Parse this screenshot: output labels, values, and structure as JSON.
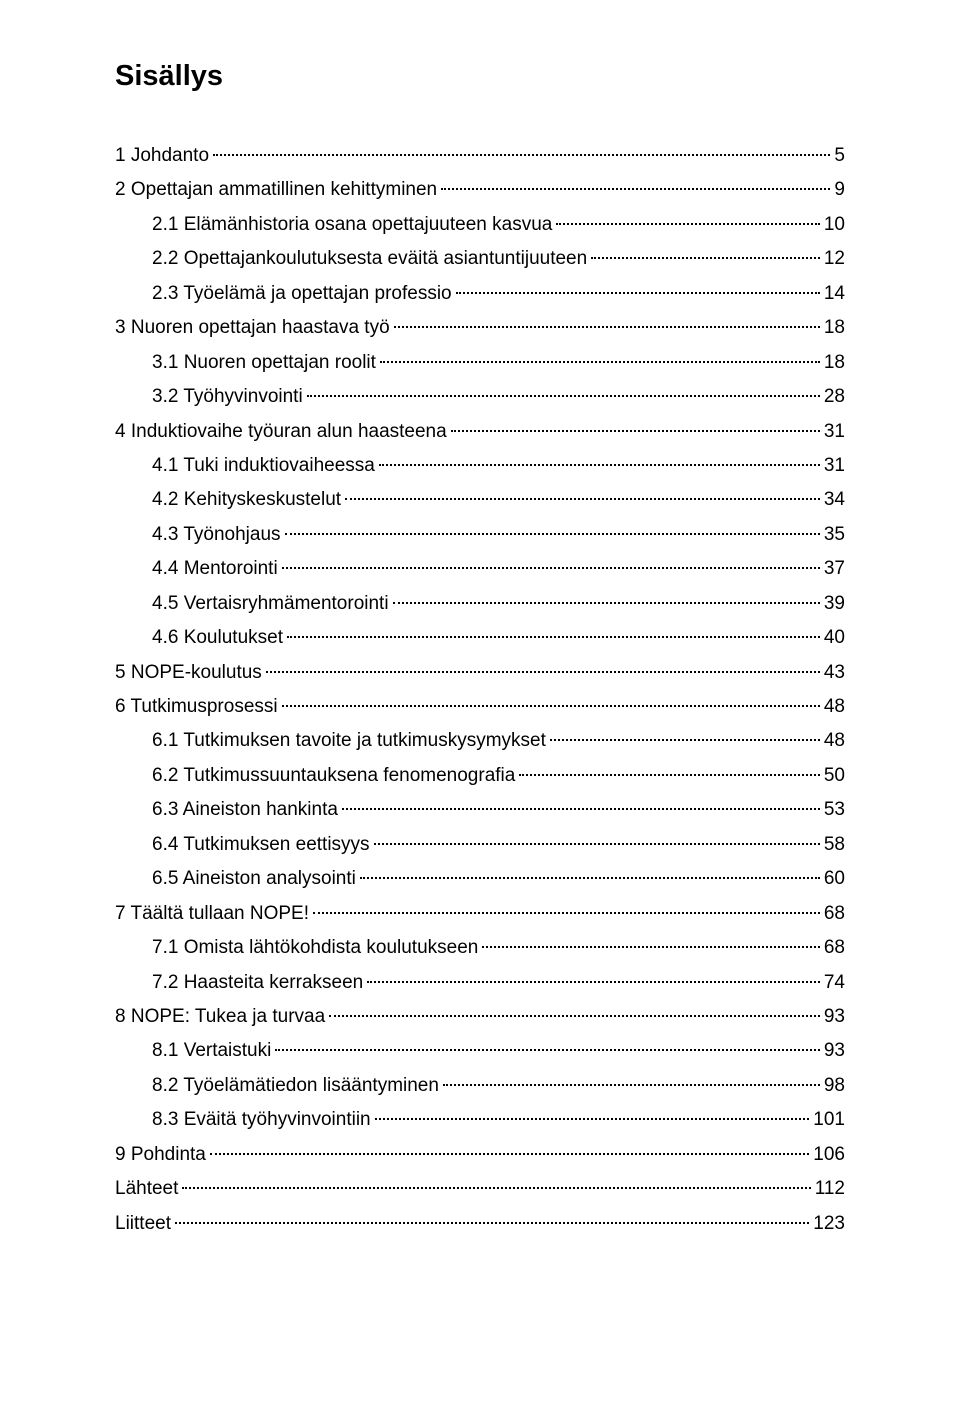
{
  "title": "Sisällys",
  "entries": [
    {
      "label": "1 Johdanto",
      "page": "5",
      "indent": 0
    },
    {
      "label": "2 Opettajan ammatillinen kehittyminen",
      "page": "9",
      "indent": 0
    },
    {
      "label": "2.1 Elämänhistoria osana opettajuuteen kasvua",
      "page": "10",
      "indent": 1
    },
    {
      "label": "2.2 Opettajankoulutuksesta eväitä asiantuntijuuteen",
      "page": "12",
      "indent": 1
    },
    {
      "label": "2.3 Työelämä ja opettajan professio",
      "page": "14",
      "indent": 1
    },
    {
      "label": "3 Nuoren opettajan haastava työ",
      "page": "18",
      "indent": 0
    },
    {
      "label": "3.1 Nuoren opettajan roolit",
      "page": "18",
      "indent": 1
    },
    {
      "label": "3.2 Työhyvinvointi",
      "page": "28",
      "indent": 1
    },
    {
      "label": "4 Induktiovaihe työuran alun haasteena",
      "page": "31",
      "indent": 0
    },
    {
      "label": "4.1 Tuki induktiovaiheessa",
      "page": "31",
      "indent": 1
    },
    {
      "label": "4.2 Kehityskeskustelut",
      "page": "34",
      "indent": 1
    },
    {
      "label": "4.3 Työnohjaus",
      "page": "35",
      "indent": 1
    },
    {
      "label": "4.4 Mentorointi",
      "page": "37",
      "indent": 1
    },
    {
      "label": "4.5 Vertaisryhmämentorointi",
      "page": "39",
      "indent": 1
    },
    {
      "label": "4.6 Koulutukset",
      "page": "40",
      "indent": 1
    },
    {
      "label": "5 NOPE-koulutus",
      "page": "43",
      "indent": 0
    },
    {
      "label": "6 Tutkimusprosessi",
      "page": "48",
      "indent": 0
    },
    {
      "label": "6.1 Tutkimuksen tavoite ja tutkimuskysymykset",
      "page": "48",
      "indent": 1
    },
    {
      "label": "6.2 Tutkimussuuntauksena fenomenografia",
      "page": "50",
      "indent": 1
    },
    {
      "label": "6.3 Aineiston hankinta",
      "page": "53",
      "indent": 1
    },
    {
      "label": "6.4 Tutkimuksen eettisyys",
      "page": "58",
      "indent": 1
    },
    {
      "label": "6.5 Aineiston analysointi",
      "page": "60",
      "indent": 1
    },
    {
      "label": "7 Täältä tullaan NOPE!",
      "page": "68",
      "indent": 0
    },
    {
      "label": "7.1 Omista lähtökohdista koulutukseen",
      "page": "68",
      "indent": 1
    },
    {
      "label": "7.2 Haasteita kerrakseen",
      "page": "74",
      "indent": 1
    },
    {
      "label": "8 NOPE: Tukea ja turvaa",
      "page": "93",
      "indent": 0
    },
    {
      "label": "8.1 Vertaistuki",
      "page": "93",
      "indent": 1
    },
    {
      "label": "8.2 Työelämätiedon lisääntyminen",
      "page": "98",
      "indent": 1
    },
    {
      "label": "8.3 Eväitä työhyvinvointiin",
      "page": "101",
      "indent": 1
    },
    {
      "label": "9 Pohdinta",
      "page": "106",
      "indent": 0
    },
    {
      "label": "Lähteet",
      "page": "112",
      "indent": 0
    },
    {
      "label": "Liitteet",
      "page": "123",
      "indent": 0
    }
  ]
}
